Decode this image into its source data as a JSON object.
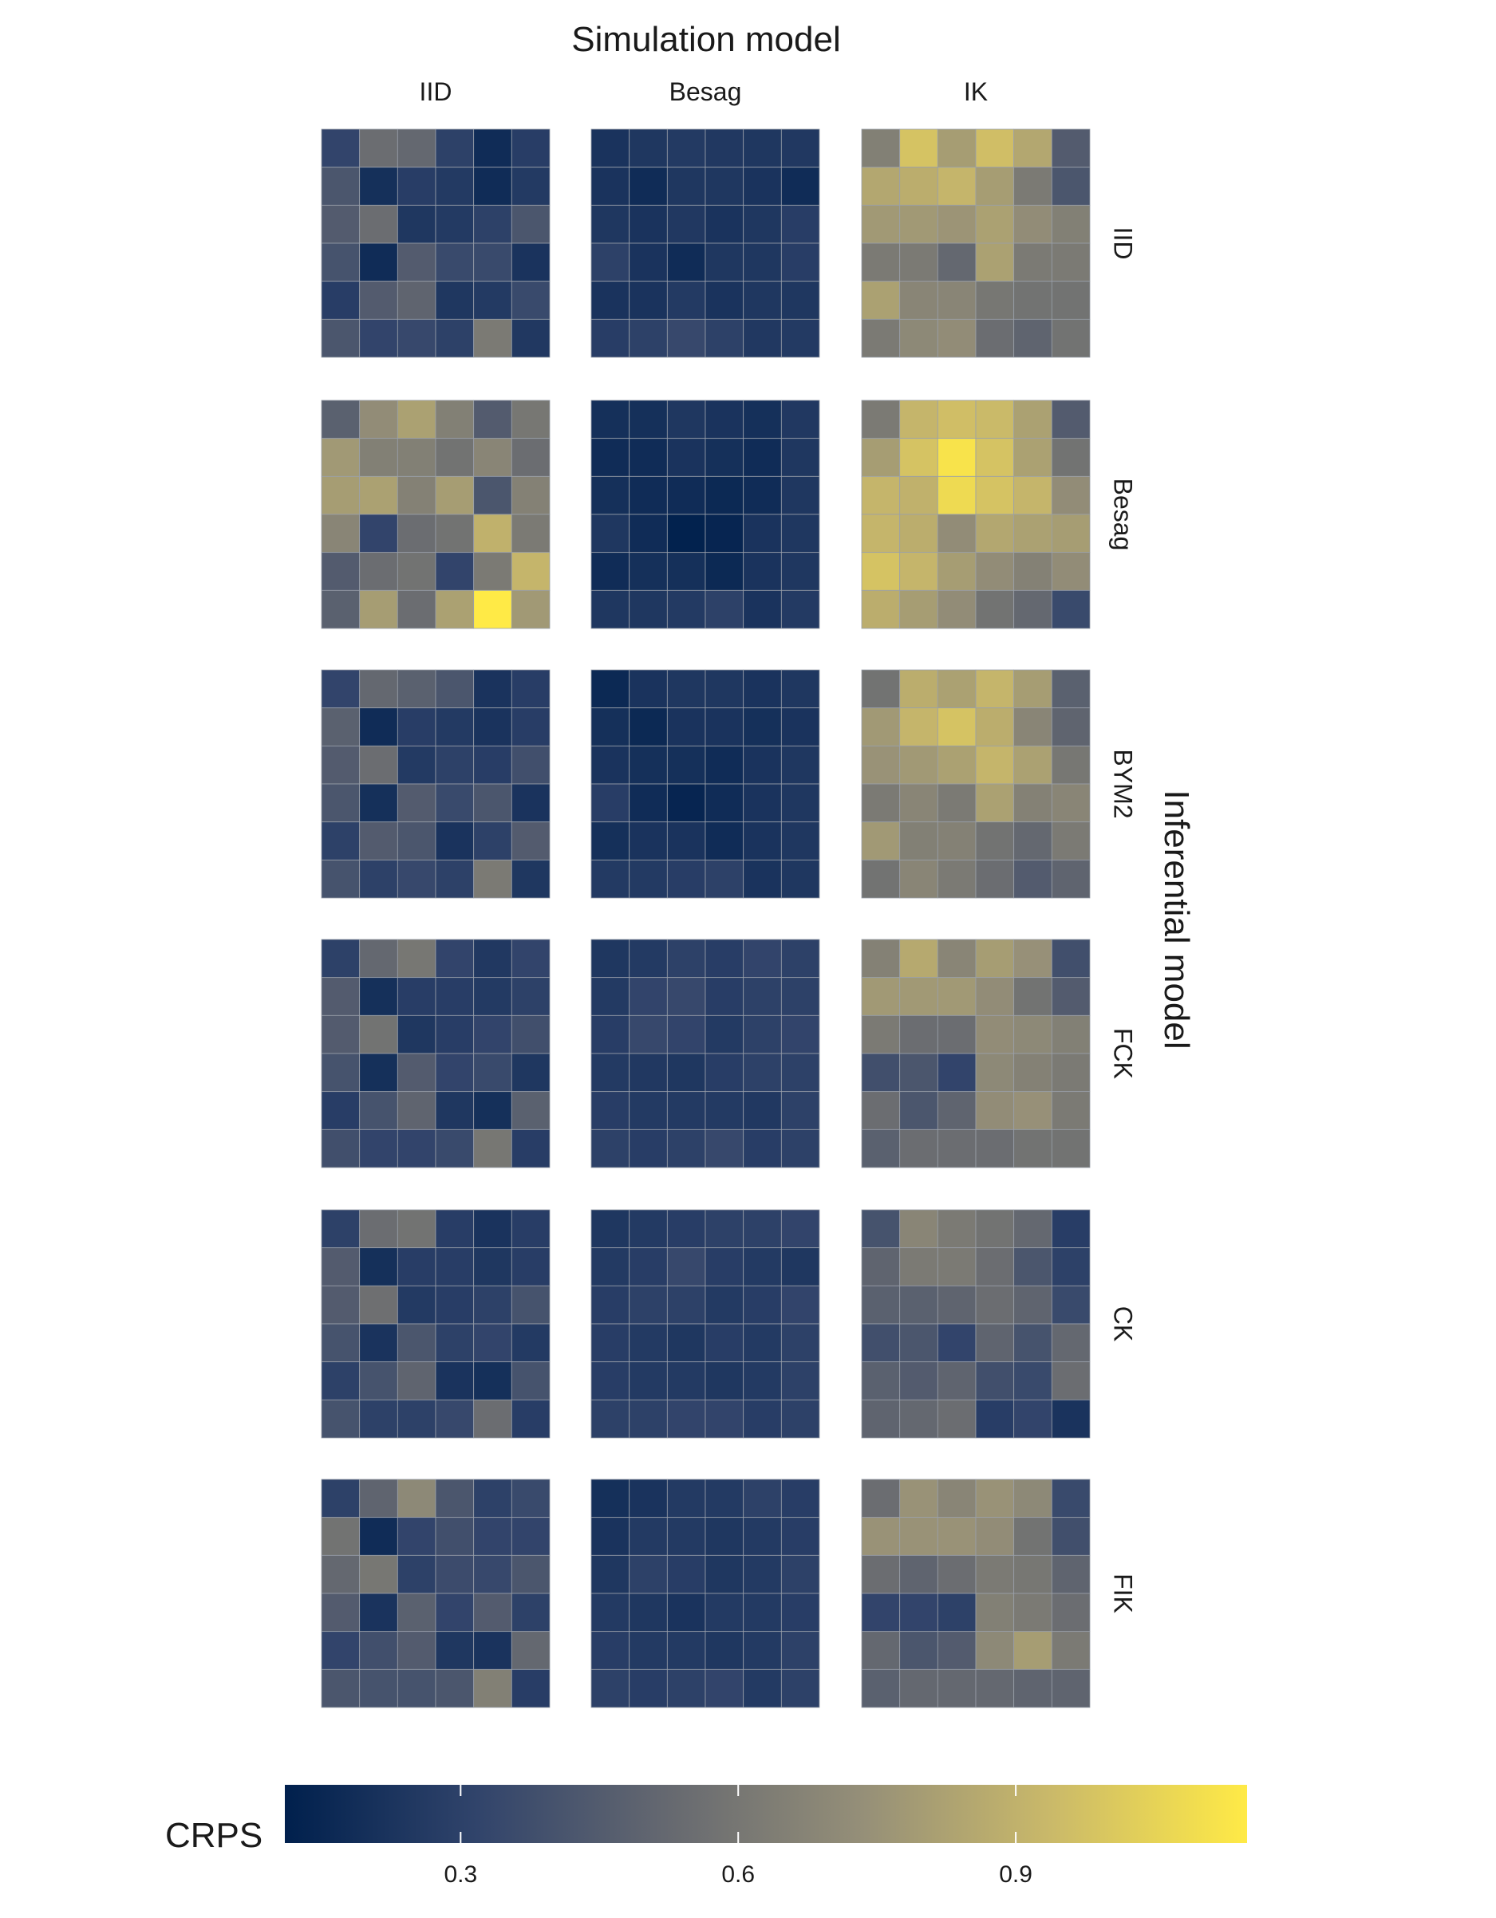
{
  "chart_data": {
    "type": "heatmap",
    "title": "Simulation model",
    "ylabel": "Inferential model",
    "columns": [
      "IID",
      "Besag",
      "IK"
    ],
    "rows": [
      "IID",
      "Besag",
      "BYM2",
      "FCK",
      "CK",
      "FIK"
    ],
    "grid_size": [
      6,
      6
    ],
    "colorbar": {
      "label": "CRPS",
      "min": 0.11,
      "max": 1.15,
      "ticks": [
        0.3,
        0.6,
        0.9
      ],
      "tick_labels": [
        "0.3",
        "0.6",
        "0.9"
      ],
      "colors": [
        "#00204d",
        "#31446b",
        "#666970",
        "#958f78",
        "#cbba69",
        "#ffea46"
      ]
    },
    "cells": [
      [
        [
          [
            0.32,
            0.55,
            0.52,
            0.3,
            0.18,
            0.28
          ],
          [
            0.42,
            0.2,
            0.28,
            0.26,
            0.18,
            0.26
          ],
          [
            0.45,
            0.55,
            0.24,
            0.26,
            0.3,
            0.42
          ],
          [
            0.4,
            0.18,
            0.45,
            0.35,
            0.35,
            0.22
          ],
          [
            0.28,
            0.45,
            0.5,
            0.24,
            0.26,
            0.35
          ],
          [
            0.42,
            0.32,
            0.34,
            0.3,
            0.62,
            0.25
          ]
        ],
        [
          [
            0.22,
            0.24,
            0.26,
            0.25,
            0.24,
            0.25
          ],
          [
            0.22,
            0.18,
            0.24,
            0.24,
            0.22,
            0.18
          ],
          [
            0.24,
            0.22,
            0.25,
            0.22,
            0.24,
            0.28
          ],
          [
            0.3,
            0.22,
            0.18,
            0.24,
            0.24,
            0.28
          ],
          [
            0.22,
            0.22,
            0.26,
            0.22,
            0.24,
            0.24
          ],
          [
            0.28,
            0.3,
            0.34,
            0.3,
            0.25,
            0.26
          ]
        ],
        [
          [
            0.65,
            0.98,
            0.8,
            0.96,
            0.85,
            0.45
          ],
          [
            0.85,
            0.88,
            0.92,
            0.8,
            0.62,
            0.42
          ],
          [
            0.78,
            0.78,
            0.76,
            0.82,
            0.72,
            0.65
          ],
          [
            0.62,
            0.62,
            0.52,
            0.82,
            0.62,
            0.62
          ],
          [
            0.82,
            0.68,
            0.68,
            0.6,
            0.58,
            0.58
          ],
          [
            0.62,
            0.7,
            0.72,
            0.55,
            0.5,
            0.58
          ]
        ]
      ],
      [
        [
          [
            0.48,
            0.72,
            0.82,
            0.65,
            0.45,
            0.6
          ],
          [
            0.78,
            0.65,
            0.65,
            0.58,
            0.68,
            0.55
          ],
          [
            0.8,
            0.82,
            0.66,
            0.8,
            0.42,
            0.66
          ],
          [
            0.68,
            0.32,
            0.55,
            0.58,
            0.9,
            0.62
          ],
          [
            0.45,
            0.55,
            0.58,
            0.32,
            0.62,
            0.92
          ],
          [
            0.48,
            0.8,
            0.55,
            0.82,
            1.15,
            0.78
          ]
        ],
        [
          [
            0.2,
            0.2,
            0.24,
            0.22,
            0.2,
            0.25
          ],
          [
            0.18,
            0.18,
            0.22,
            0.2,
            0.18,
            0.24
          ],
          [
            0.2,
            0.18,
            0.18,
            0.16,
            0.18,
            0.24
          ],
          [
            0.24,
            0.18,
            0.12,
            0.14,
            0.22,
            0.24
          ],
          [
            0.18,
            0.2,
            0.2,
            0.16,
            0.22,
            0.24
          ],
          [
            0.24,
            0.24,
            0.26,
            0.3,
            0.22,
            0.26
          ]
        ],
        [
          [
            0.62,
            0.92,
            0.96,
            0.94,
            0.82,
            0.45
          ],
          [
            0.8,
            0.98,
            1.12,
            0.98,
            0.82,
            0.58
          ],
          [
            0.92,
            0.9,
            1.08,
            0.98,
            0.92,
            0.72
          ],
          [
            0.92,
            0.88,
            0.72,
            0.85,
            0.82,
            0.8
          ],
          [
            0.98,
            0.92,
            0.8,
            0.72,
            0.66,
            0.72
          ],
          [
            0.88,
            0.8,
            0.72,
            0.58,
            0.52,
            0.35
          ]
        ]
      ],
      [
        [
          [
            0.32,
            0.52,
            0.48,
            0.42,
            0.22,
            0.28
          ],
          [
            0.48,
            0.18,
            0.28,
            0.26,
            0.22,
            0.28
          ],
          [
            0.45,
            0.55,
            0.26,
            0.3,
            0.28,
            0.38
          ],
          [
            0.42,
            0.2,
            0.45,
            0.35,
            0.42,
            0.22
          ],
          [
            0.3,
            0.45,
            0.42,
            0.22,
            0.3,
            0.45
          ],
          [
            0.4,
            0.3,
            0.34,
            0.3,
            0.62,
            0.24
          ]
        ],
        [
          [
            0.16,
            0.22,
            0.24,
            0.24,
            0.22,
            0.24
          ],
          [
            0.2,
            0.16,
            0.22,
            0.22,
            0.2,
            0.22
          ],
          [
            0.22,
            0.2,
            0.2,
            0.18,
            0.22,
            0.24
          ],
          [
            0.28,
            0.18,
            0.14,
            0.18,
            0.22,
            0.24
          ],
          [
            0.2,
            0.22,
            0.22,
            0.18,
            0.22,
            0.24
          ],
          [
            0.26,
            0.26,
            0.28,
            0.3,
            0.22,
            0.24
          ]
        ],
        [
          [
            0.58,
            0.88,
            0.82,
            0.92,
            0.8,
            0.48
          ],
          [
            0.78,
            0.92,
            0.98,
            0.88,
            0.68,
            0.5
          ],
          [
            0.75,
            0.78,
            0.82,
            0.92,
            0.82,
            0.6
          ],
          [
            0.62,
            0.68,
            0.62,
            0.82,
            0.66,
            0.68
          ],
          [
            0.78,
            0.65,
            0.66,
            0.58,
            0.52,
            0.62
          ],
          [
            0.58,
            0.68,
            0.62,
            0.55,
            0.45,
            0.5
          ]
        ]
      ],
      [
        [
          [
            0.3,
            0.52,
            0.6,
            0.32,
            0.25,
            0.32
          ],
          [
            0.45,
            0.2,
            0.28,
            0.28,
            0.26,
            0.3
          ],
          [
            0.45,
            0.58,
            0.24,
            0.28,
            0.32,
            0.38
          ],
          [
            0.4,
            0.2,
            0.45,
            0.32,
            0.35,
            0.24
          ],
          [
            0.28,
            0.4,
            0.5,
            0.24,
            0.2,
            0.48
          ],
          [
            0.38,
            0.32,
            0.32,
            0.35,
            0.6,
            0.28
          ]
        ],
        [
          [
            0.24,
            0.26,
            0.3,
            0.28,
            0.32,
            0.3
          ],
          [
            0.26,
            0.32,
            0.34,
            0.28,
            0.3,
            0.3
          ],
          [
            0.28,
            0.34,
            0.32,
            0.26,
            0.3,
            0.32
          ],
          [
            0.26,
            0.25,
            0.24,
            0.28,
            0.3,
            0.3
          ],
          [
            0.28,
            0.26,
            0.26,
            0.26,
            0.25,
            0.3
          ],
          [
            0.3,
            0.28,
            0.3,
            0.34,
            0.28,
            0.3
          ]
        ],
        [
          [
            0.66,
            0.86,
            0.68,
            0.8,
            0.74,
            0.38
          ],
          [
            0.78,
            0.78,
            0.78,
            0.72,
            0.58,
            0.45
          ],
          [
            0.62,
            0.55,
            0.55,
            0.72,
            0.7,
            0.65
          ],
          [
            0.38,
            0.42,
            0.32,
            0.7,
            0.66,
            0.62
          ],
          [
            0.55,
            0.42,
            0.5,
            0.72,
            0.74,
            0.62
          ],
          [
            0.48,
            0.55,
            0.55,
            0.55,
            0.58,
            0.58
          ]
        ]
      ],
      [
        [
          [
            0.3,
            0.55,
            0.58,
            0.28,
            0.22,
            0.28
          ],
          [
            0.45,
            0.2,
            0.28,
            0.28,
            0.24,
            0.28
          ],
          [
            0.45,
            0.56,
            0.26,
            0.28,
            0.3,
            0.4
          ],
          [
            0.4,
            0.22,
            0.42,
            0.3,
            0.32,
            0.26
          ],
          [
            0.3,
            0.4,
            0.5,
            0.22,
            0.2,
            0.4
          ],
          [
            0.4,
            0.3,
            0.3,
            0.34,
            0.55,
            0.28
          ]
        ],
        [
          [
            0.24,
            0.26,
            0.28,
            0.3,
            0.3,
            0.32
          ],
          [
            0.26,
            0.28,
            0.34,
            0.28,
            0.26,
            0.24
          ],
          [
            0.28,
            0.3,
            0.3,
            0.26,
            0.28,
            0.32
          ],
          [
            0.28,
            0.26,
            0.24,
            0.28,
            0.26,
            0.3
          ],
          [
            0.28,
            0.26,
            0.26,
            0.24,
            0.26,
            0.3
          ],
          [
            0.3,
            0.3,
            0.32,
            0.32,
            0.28,
            0.3
          ]
        ],
        [
          [
            0.4,
            0.68,
            0.62,
            0.58,
            0.52,
            0.28
          ],
          [
            0.5,
            0.62,
            0.62,
            0.55,
            0.42,
            0.3
          ],
          [
            0.48,
            0.48,
            0.5,
            0.55,
            0.5,
            0.35
          ],
          [
            0.38,
            0.42,
            0.32,
            0.5,
            0.4,
            0.52
          ],
          [
            0.48,
            0.45,
            0.5,
            0.38,
            0.35,
            0.55
          ],
          [
            0.5,
            0.52,
            0.55,
            0.28,
            0.32,
            0.22
          ]
        ]
      ],
      [
        [
          [
            0.3,
            0.5,
            0.7,
            0.42,
            0.3,
            0.35
          ],
          [
            0.58,
            0.18,
            0.32,
            0.38,
            0.32,
            0.32
          ],
          [
            0.52,
            0.6,
            0.3,
            0.36,
            0.34,
            0.42
          ],
          [
            0.45,
            0.22,
            0.48,
            0.32,
            0.45,
            0.3
          ],
          [
            0.32,
            0.38,
            0.45,
            0.24,
            0.22,
            0.52
          ],
          [
            0.42,
            0.4,
            0.4,
            0.42,
            0.65,
            0.28
          ]
        ],
        [
          [
            0.2,
            0.22,
            0.26,
            0.26,
            0.3,
            0.28
          ],
          [
            0.22,
            0.26,
            0.26,
            0.24,
            0.26,
            0.28
          ],
          [
            0.24,
            0.3,
            0.28,
            0.24,
            0.26,
            0.3
          ],
          [
            0.26,
            0.24,
            0.22,
            0.26,
            0.26,
            0.28
          ],
          [
            0.28,
            0.26,
            0.26,
            0.24,
            0.26,
            0.3
          ],
          [
            0.3,
            0.28,
            0.3,
            0.32,
            0.26,
            0.3
          ]
        ],
        [
          [
            0.55,
            0.75,
            0.68,
            0.75,
            0.7,
            0.35
          ],
          [
            0.75,
            0.75,
            0.75,
            0.72,
            0.58,
            0.38
          ],
          [
            0.55,
            0.5,
            0.55,
            0.62,
            0.6,
            0.5
          ],
          [
            0.32,
            0.32,
            0.3,
            0.65,
            0.62,
            0.55
          ],
          [
            0.52,
            0.42,
            0.45,
            0.7,
            0.8,
            0.62
          ],
          [
            0.48,
            0.52,
            0.52,
            0.52,
            0.5,
            0.5
          ]
        ]
      ]
    ]
  }
}
